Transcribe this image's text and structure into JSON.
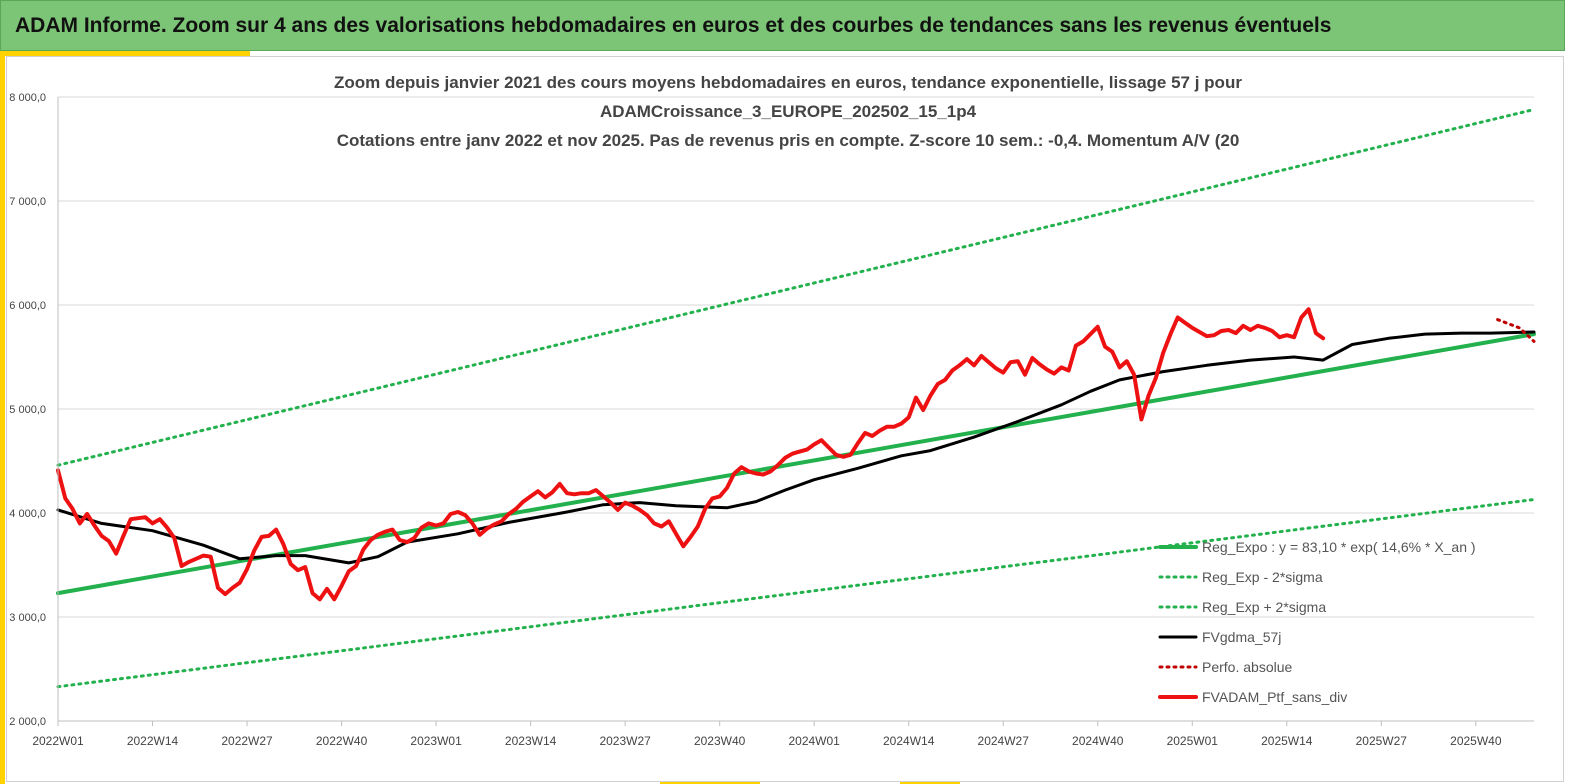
{
  "banner": {
    "title": "ADAM Informe. Zoom sur 4 ans des valorisations hebdomadaires en euros et des courbes de tendances sans les revenus éventuels"
  },
  "colors": {
    "banner_bg": "#7cc576",
    "accent": "#ffd200",
    "trend_green": "#22b14c",
    "smooth_black": "#000000",
    "portfolio_red": "#ee1111",
    "perfo_dark_red": "#c00000"
  },
  "chart_data": {
    "type": "line",
    "title": [
      "Zoom depuis janvier 2021 des cours moyens hebdomadaires  en euros, tendance exponentielle, lissage 57 j pour",
      "ADAMCroissance_3_EUROPE_202502_15_1p4",
      "Cotations  entre janv 2022 et nov 2025. Pas de revenus pris en compte. Z-score 10 sem.: -0,4. Momentum A/V (20"
    ],
    "xlabel": "",
    "ylabel": "",
    "ylim": [
      2000,
      8000
    ],
    "y_ticks": [
      {
        "value": 2000,
        "label": "2 000,0"
      },
      {
        "value": 3000,
        "label": "3 000,0"
      },
      {
        "value": 4000,
        "label": "4 000,0"
      },
      {
        "value": 5000,
        "label": "5 000,0"
      },
      {
        "value": 6000,
        "label": "6 000,0"
      },
      {
        "value": 7000,
        "label": "7 000,0"
      },
      {
        "value": 8000,
        "label": "8 000,0"
      }
    ],
    "x_range_weeks": [
      0,
      203
    ],
    "x_ticks": [
      {
        "week": 0,
        "label": "2022W01"
      },
      {
        "week": 13,
        "label": "2022W14"
      },
      {
        "week": 26,
        "label": "2022W27"
      },
      {
        "week": 39,
        "label": "2022W40"
      },
      {
        "week": 52,
        "label": "2023W01"
      },
      {
        "week": 65,
        "label": "2023W14"
      },
      {
        "week": 78,
        "label": "2023W27"
      },
      {
        "week": 91,
        "label": "2023W40"
      },
      {
        "week": 104,
        "label": "2024W01"
      },
      {
        "week": 117,
        "label": "2024W14"
      },
      {
        "week": 130,
        "label": "2024W27"
      },
      {
        "week": 143,
        "label": "2024W40"
      },
      {
        "week": 156,
        "label": "2025W01"
      },
      {
        "week": 169,
        "label": "2025W14"
      },
      {
        "week": 182,
        "label": "2025W27"
      },
      {
        "week": 195,
        "label": "2025W40"
      }
    ],
    "grid": true,
    "legend_position": "bottom-right",
    "series": [
      {
        "name": "Reg_Expo : y = 83,10 * exp( 14,6% *  X_an )",
        "style": "solid",
        "color": "#22b14c",
        "width": 4,
        "points": [
          [
            0,
            3230
          ],
          [
            203,
            5720
          ]
        ]
      },
      {
        "name": "Reg_Exp - 2*sigma",
        "style": "dotted",
        "color": "#22b14c",
        "width": 3,
        "points": [
          [
            0,
            2330
          ],
          [
            203,
            4130
          ]
        ]
      },
      {
        "name": "Reg_Exp + 2*sigma",
        "style": "dotted",
        "color": "#22b14c",
        "width": 3,
        "points": [
          [
            0,
            4460
          ],
          [
            203,
            7880
          ]
        ]
      },
      {
        "name": "FVgdma_57j",
        "style": "solid",
        "color": "#000000",
        "width": 3,
        "points": [
          [
            0,
            4030
          ],
          [
            6,
            3900
          ],
          [
            13,
            3830
          ],
          [
            20,
            3690
          ],
          [
            25,
            3560
          ],
          [
            30,
            3590
          ],
          [
            34,
            3590
          ],
          [
            40,
            3520
          ],
          [
            44,
            3580
          ],
          [
            48,
            3720
          ],
          [
            55,
            3800
          ],
          [
            62,
            3910
          ],
          [
            70,
            4010
          ],
          [
            75,
            4080
          ],
          [
            80,
            4100
          ],
          [
            85,
            4070
          ],
          [
            92,
            4050
          ],
          [
            96,
            4110
          ],
          [
            100,
            4220
          ],
          [
            104,
            4320
          ],
          [
            110,
            4430
          ],
          [
            116,
            4550
          ],
          [
            120,
            4600
          ],
          [
            126,
            4730
          ],
          [
            132,
            4880
          ],
          [
            138,
            5040
          ],
          [
            142,
            5170
          ],
          [
            146,
            5280
          ],
          [
            152,
            5360
          ],
          [
            158,
            5420
          ],
          [
            164,
            5470
          ],
          [
            170,
            5500
          ],
          [
            174,
            5470
          ],
          [
            178,
            5620
          ],
          [
            183,
            5680
          ],
          [
            188,
            5720
          ],
          [
            193,
            5730
          ],
          [
            197,
            5730
          ],
          [
            203,
            5740
          ]
        ]
      },
      {
        "name": "Perfo. absolue",
        "style": "dotted",
        "color": "#c00000",
        "width": 3,
        "points": [
          [
            198,
            5860
          ],
          [
            201,
            5780
          ],
          [
            203,
            5650
          ]
        ]
      },
      {
        "name": "FVADAM_Ptf_sans_div",
        "style": "solid",
        "color": "#ee1111",
        "width": 4,
        "points": [
          [
            0,
            4410
          ],
          [
            1,
            4140
          ],
          [
            2,
            4040
          ],
          [
            3,
            3900
          ],
          [
            4,
            3990
          ],
          [
            5,
            3880
          ],
          [
            6,
            3780
          ],
          [
            7,
            3730
          ],
          [
            8,
            3610
          ],
          [
            9,
            3780
          ],
          [
            10,
            3940
          ],
          [
            11,
            3950
          ],
          [
            12,
            3960
          ],
          [
            13,
            3900
          ],
          [
            14,
            3940
          ],
          [
            15,
            3860
          ],
          [
            16,
            3760
          ],
          [
            17,
            3490
          ],
          [
            18,
            3530
          ],
          [
            19,
            3560
          ],
          [
            20,
            3590
          ],
          [
            21,
            3580
          ],
          [
            22,
            3280
          ],
          [
            23,
            3220
          ],
          [
            24,
            3280
          ],
          [
            25,
            3330
          ],
          [
            26,
            3460
          ],
          [
            27,
            3640
          ],
          [
            28,
            3770
          ],
          [
            29,
            3780
          ],
          [
            30,
            3840
          ],
          [
            31,
            3700
          ],
          [
            32,
            3510
          ],
          [
            33,
            3450
          ],
          [
            34,
            3480
          ],
          [
            35,
            3230
          ],
          [
            36,
            3170
          ],
          [
            37,
            3270
          ],
          [
            38,
            3170
          ],
          [
            39,
            3300
          ],
          [
            40,
            3440
          ],
          [
            41,
            3490
          ],
          [
            42,
            3650
          ],
          [
            43,
            3740
          ],
          [
            44,
            3790
          ],
          [
            45,
            3820
          ],
          [
            46,
            3840
          ],
          [
            47,
            3740
          ],
          [
            48,
            3720
          ],
          [
            49,
            3760
          ],
          [
            50,
            3860
          ],
          [
            51,
            3900
          ],
          [
            52,
            3880
          ],
          [
            53,
            3900
          ],
          [
            54,
            3990
          ],
          [
            55,
            4010
          ],
          [
            56,
            3980
          ],
          [
            57,
            3900
          ],
          [
            58,
            3790
          ],
          [
            59,
            3850
          ],
          [
            60,
            3890
          ],
          [
            61,
            3920
          ],
          [
            62,
            3990
          ],
          [
            63,
            4040
          ],
          [
            64,
            4110
          ],
          [
            65,
            4160
          ],
          [
            66,
            4210
          ],
          [
            67,
            4150
          ],
          [
            68,
            4200
          ],
          [
            69,
            4280
          ],
          [
            70,
            4190
          ],
          [
            71,
            4180
          ],
          [
            72,
            4190
          ],
          [
            73,
            4190
          ],
          [
            74,
            4220
          ],
          [
            75,
            4160
          ],
          [
            76,
            4100
          ],
          [
            77,
            4030
          ],
          [
            78,
            4100
          ],
          [
            79,
            4070
          ],
          [
            80,
            4030
          ],
          [
            81,
            3980
          ],
          [
            82,
            3900
          ],
          [
            83,
            3870
          ],
          [
            84,
            3920
          ],
          [
            85,
            3800
          ],
          [
            86,
            3680
          ],
          [
            87,
            3770
          ],
          [
            88,
            3870
          ],
          [
            89,
            4040
          ],
          [
            90,
            4140
          ],
          [
            91,
            4160
          ],
          [
            92,
            4240
          ],
          [
            93,
            4380
          ],
          [
            94,
            4440
          ],
          [
            95,
            4400
          ],
          [
            96,
            4380
          ],
          [
            97,
            4370
          ],
          [
            98,
            4400
          ],
          [
            99,
            4460
          ],
          [
            100,
            4530
          ],
          [
            101,
            4570
          ],
          [
            102,
            4590
          ],
          [
            103,
            4610
          ],
          [
            104,
            4660
          ],
          [
            105,
            4700
          ],
          [
            106,
            4630
          ],
          [
            107,
            4560
          ],
          [
            108,
            4540
          ],
          [
            109,
            4560
          ],
          [
            110,
            4670
          ],
          [
            111,
            4770
          ],
          [
            112,
            4740
          ],
          [
            113,
            4790
          ],
          [
            114,
            4830
          ],
          [
            115,
            4830
          ],
          [
            116,
            4860
          ],
          [
            117,
            4920
          ],
          [
            118,
            5110
          ],
          [
            119,
            4990
          ],
          [
            120,
            5130
          ],
          [
            121,
            5240
          ],
          [
            122,
            5280
          ],
          [
            123,
            5370
          ],
          [
            124,
            5420
          ],
          [
            125,
            5480
          ],
          [
            126,
            5420
          ],
          [
            127,
            5510
          ],
          [
            128,
            5450
          ],
          [
            129,
            5390
          ],
          [
            130,
            5350
          ],
          [
            131,
            5450
          ],
          [
            132,
            5460
          ],
          [
            133,
            5330
          ],
          [
            134,
            5490
          ],
          [
            135,
            5430
          ],
          [
            136,
            5380
          ],
          [
            137,
            5340
          ],
          [
            138,
            5400
          ],
          [
            139,
            5370
          ],
          [
            140,
            5610
          ],
          [
            141,
            5650
          ],
          [
            142,
            5720
          ],
          [
            143,
            5790
          ],
          [
            144,
            5600
          ],
          [
            145,
            5550
          ],
          [
            146,
            5400
          ],
          [
            147,
            5460
          ],
          [
            148,
            5330
          ],
          [
            149,
            4900
          ],
          [
            150,
            5130
          ],
          [
            151,
            5300
          ],
          [
            152,
            5540
          ],
          [
            153,
            5720
          ],
          [
            154,
            5880
          ],
          [
            155,
            5830
          ],
          [
            156,
            5780
          ],
          [
            157,
            5740
          ],
          [
            158,
            5700
          ],
          [
            159,
            5710
          ],
          [
            160,
            5750
          ],
          [
            161,
            5760
          ],
          [
            162,
            5730
          ],
          [
            163,
            5800
          ],
          [
            164,
            5760
          ],
          [
            165,
            5800
          ],
          [
            166,
            5780
          ],
          [
            167,
            5750
          ],
          [
            168,
            5690
          ],
          [
            169,
            5710
          ],
          [
            170,
            5690
          ],
          [
            171,
            5880
          ],
          [
            172,
            5960
          ],
          [
            173,
            5730
          ],
          [
            174,
            5680
          ]
        ]
      }
    ]
  }
}
